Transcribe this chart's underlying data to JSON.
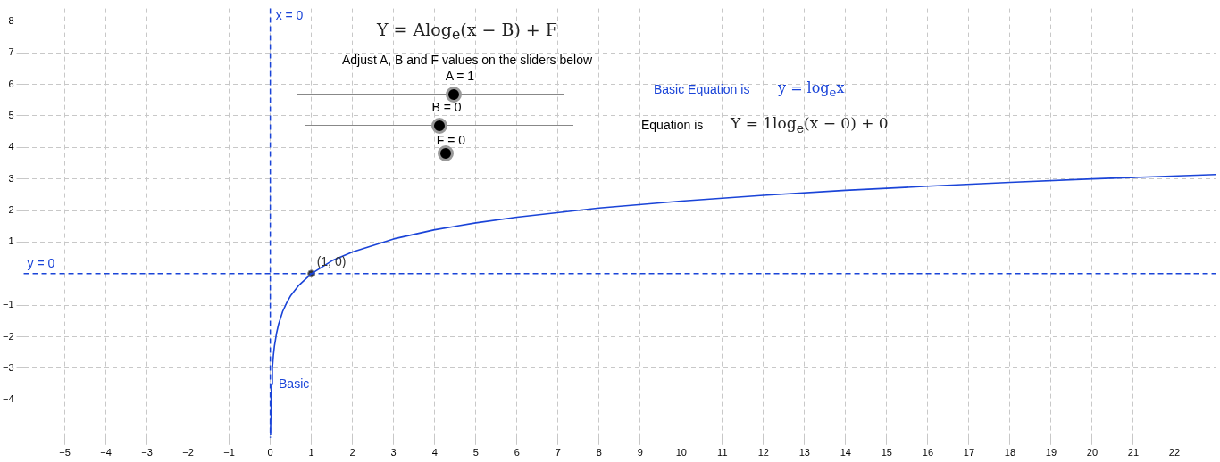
{
  "chart_data": {
    "type": "line",
    "xlim": [
      -6,
      23
    ],
    "ylim": [
      -5.2,
      8.4
    ],
    "xticks": [
      -5,
      -4,
      -3,
      -2,
      -1,
      0,
      1,
      2,
      3,
      4,
      5,
      6,
      7,
      8,
      9,
      10,
      11,
      12,
      13,
      14,
      15,
      16,
      17,
      18,
      19,
      20,
      21,
      22
    ],
    "yticks": [
      -4,
      -3,
      -2,
      -1,
      1,
      2,
      3,
      4,
      5,
      6,
      7,
      8
    ],
    "grid": true,
    "legend": false,
    "series": [
      {
        "name": "Basic",
        "color": "#1a44d8",
        "marker": "none",
        "x": [
          0.006,
          0.01,
          0.02,
          0.03,
          0.05,
          0.075,
          0.1,
          0.15,
          0.2,
          0.3,
          0.4,
          0.5,
          0.7,
          1,
          1.5,
          2,
          3,
          4,
          5,
          6,
          8,
          10,
          12,
          14,
          16,
          18,
          20,
          23
        ],
        "values": [
          -5.12,
          -4.61,
          -3.91,
          -3.51,
          -3.0,
          -2.59,
          -2.3,
          -1.9,
          -1.61,
          -1.2,
          -0.92,
          -0.69,
          -0.36,
          0,
          0.41,
          0.69,
          1.1,
          1.39,
          1.61,
          1.79,
          2.08,
          2.3,
          2.48,
          2.64,
          2.77,
          2.89,
          3.0,
          3.14
        ]
      },
      {
        "type": "scatter",
        "color": "#333333",
        "marker": "circle",
        "x": [
          1
        ],
        "values": [
          0
        ]
      }
    ],
    "ref_lines": [
      {
        "axis": "x",
        "value": 0,
        "label": "x = 0",
        "color": "#1a44d8",
        "line_style": "dashed"
      },
      {
        "axis": "y",
        "value": 0,
        "label": "y = 0",
        "color": "#1a44d8",
        "line_style": "dashed"
      }
    ],
    "annotations": [
      {
        "text": "(1, 0)",
        "x": 1,
        "y": 0
      },
      "Y = Alog$_{e}$(x − B) + F",
      "Adjust A, B and F values on the sliders below",
      "A = 1",
      "B = 0",
      "F = 0",
      "Basic Equation is",
      "y = log$_{e}$x",
      "Equation is",
      "Y = 1log$_{e}$(x − 0) + 0"
    ]
  }
}
